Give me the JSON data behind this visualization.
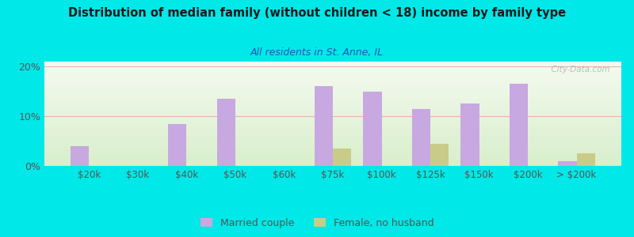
{
  "title": "Distribution of median family (without children < 18) income by family type",
  "subtitle": "All residents in St. Anne, IL",
  "categories": [
    "$20k",
    "$30k",
    "$40k",
    "$50k",
    "$60k",
    "$75k",
    "$100k",
    "$125k",
    "$150k",
    "$200k",
    "> $200k"
  ],
  "married_couple": [
    4.0,
    0,
    8.5,
    13.5,
    0,
    16.0,
    15.0,
    11.5,
    12.5,
    16.5,
    1.0
  ],
  "female_no_husband": [
    0,
    0,
    0,
    0,
    0,
    3.5,
    0,
    4.5,
    0,
    0,
    2.5
  ],
  "bar_color_married": "#c8a8e0",
  "bar_color_female": "#c8cc88",
  "bg_outer": "#00e8e8",
  "title_color": "#1a1a1a",
  "subtitle_color": "#2255bb",
  "axis_color": "#555555",
  "grid_color": "#e8b0b0",
  "ylim": [
    0,
    21
  ],
  "yticks": [
    0,
    10,
    20
  ],
  "ytick_labels": [
    "0%",
    "10%",
    "20%"
  ],
  "bar_width": 0.38,
  "watermark": "© City-Data.com",
  "legend_marker_married": "#c8a8e0",
  "legend_marker_female": "#c8cc88"
}
